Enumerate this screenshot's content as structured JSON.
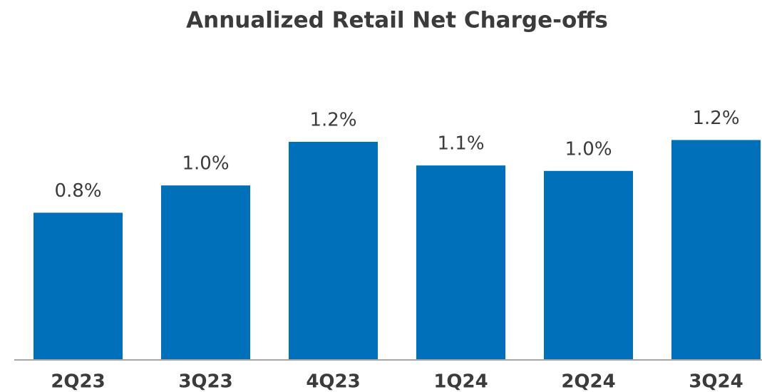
{
  "chart_data": {
    "type": "bar",
    "title": "Annualized Retail Net Charge-offs",
    "categories": [
      "2Q23",
      "3Q23",
      "4Q23",
      "1Q24",
      "2Q24",
      "3Q24"
    ],
    "values": [
      0.81,
      0.96,
      1.2,
      1.07,
      1.04,
      1.21
    ],
    "value_labels": [
      "0.8%",
      "1.0%",
      "1.2%",
      "1.1%",
      "1.0%",
      "1.2%"
    ],
    "color": "#0070bb",
    "ylim": [
      0,
      1.4
    ]
  }
}
